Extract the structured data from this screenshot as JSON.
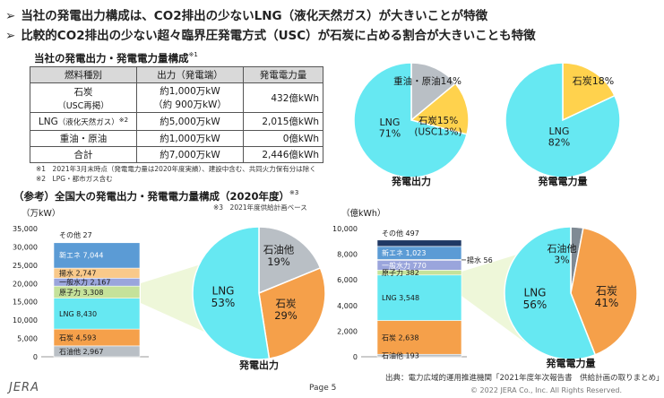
{
  "bullets": [
    "当社の発電出力構成は、CO2排出の少ないLNG（液化天然ガス）が大きいことが特徴",
    "比較的CO2排出の少ない超々臨界圧発電方式（USC）が石炭に占める割合が大きいことも特徴"
  ],
  "company_section": {
    "title": "当社の発電出力・発電電力量構成",
    "title_note": "※1",
    "table": {
      "headers": [
        "燃料種別",
        "出力（発電端）",
        "発電電力量"
      ],
      "rows": [
        {
          "fuel": "石炭",
          "fuel_sub": "（USC再掲）",
          "output": "約1,000万kW",
          "output_sub": "（約 900万kW）",
          "energy": "432億kWh"
        },
        {
          "fuel": "LNG",
          "fuel_sub_inline": "（液化天然ガス）",
          "fuel_note": "※2",
          "output": "約5,000万kW",
          "energy": "2,015億kWh"
        },
        {
          "fuel": "重油・原油",
          "output": "約1,000万kW",
          "energy": "0億kWh"
        },
        {
          "fuel": "合計",
          "output": "約7,000万kW",
          "energy": "2,446億kWh"
        }
      ]
    },
    "notes": [
      "※1　2021年3月末時点（発電電力量は2020年度実績）、建設中含む、共同火力保有分は除く",
      "※2　LPG・都市ガス含む"
    ]
  },
  "national_section": {
    "title": "（参考）全国大の発電出力・発電電力量構成（2020年度）",
    "title_note": "※3",
    "note": "※3　2021年度供給計画ベース",
    "source": "出典：電力広域的運用推進機関「2021年度年次報告書　供給計画の取りまとめ」"
  },
  "colors": {
    "lng": "#66e8f2",
    "coal": "#f5a04a",
    "coal_light": "#ffd24d",
    "oil": "#b9bfc5",
    "oil_dark": "#7f8a94",
    "renew": "#5b9bd5",
    "hydro_pumped": "#f9c98a",
    "hydro": "#9aa5dc",
    "nuclear": "#c5e29a",
    "other": "#1f3864",
    "light_blue_band": "#d6ecf8"
  },
  "chart_data": [
    {
      "type": "pie",
      "title": "発電出力",
      "slices": [
        {
          "label": "LNG",
          "value": 71,
          "display": "LNG\n71%"
        },
        {
          "label": "石炭",
          "value": 15,
          "display": "石炭15%\n(USC13%)"
        },
        {
          "label": "重油・原油",
          "value": 14,
          "display": "重油・原油14%"
        }
      ]
    },
    {
      "type": "pie",
      "title": "発電電力量",
      "slices": [
        {
          "label": "LNG",
          "value": 82,
          "display": "LNG\n82%"
        },
        {
          "label": "石炭",
          "value": 18,
          "display": "石炭18%"
        }
      ]
    },
    {
      "type": "bar",
      "stacked": true,
      "ylabel": "（万kW）",
      "ylim": [
        0,
        35000
      ],
      "yticks": [
        0,
        5000,
        10000,
        15000,
        20000,
        25000,
        30000,
        35000
      ],
      "segments": [
        {
          "name": "石油他",
          "value": 2967,
          "label": "石油他 2,967"
        },
        {
          "name": "石炭",
          "value": 4593,
          "label": "石炭 4,593"
        },
        {
          "name": "LNG",
          "value": 8430,
          "label": "LNG 8,430"
        },
        {
          "name": "原子力",
          "value": 3308,
          "label": "原子力 3,308"
        },
        {
          "name": "一般水力",
          "value": 2167,
          "label": "一般水力 2,167"
        },
        {
          "name": "揚水",
          "value": 2747,
          "label": "揚水 2,747"
        },
        {
          "name": "新エネ",
          "value": 7044,
          "label": "新エネ 7,044"
        },
        {
          "name": "その他",
          "value": 27,
          "label": "その他 27"
        }
      ]
    },
    {
      "type": "pie",
      "title": "発電出力",
      "slices": [
        {
          "label": "LNG",
          "value": 53,
          "display": "LNG\n53%"
        },
        {
          "label": "石炭",
          "value": 29,
          "display": "石炭\n29%"
        },
        {
          "label": "石油他",
          "value": 19,
          "display": "石油他\n19%"
        }
      ]
    },
    {
      "type": "bar",
      "stacked": true,
      "ylabel": "（億kWh）",
      "ylim": [
        0,
        10000
      ],
      "yticks": [
        0,
        2000,
        4000,
        6000,
        8000,
        10000
      ],
      "segments": [
        {
          "name": "石油他",
          "value": 193,
          "label": "石油他 193"
        },
        {
          "name": "石炭",
          "value": 2638,
          "label": "石炭 2,638"
        },
        {
          "name": "LNG",
          "value": 3548,
          "label": "LNG 3,548"
        },
        {
          "name": "原子力",
          "value": 382,
          "label": "原子力 382"
        },
        {
          "name": "一般水力",
          "value": 770,
          "label": "一般水力 770"
        },
        {
          "name": "揚水",
          "value": 56,
          "label": "揚水 56"
        },
        {
          "name": "新エネ",
          "value": 1023,
          "label": "新エネ 1,023"
        },
        {
          "name": "その他",
          "value": 497,
          "label": "その他 497"
        }
      ]
    },
    {
      "type": "pie",
      "title": "発電電力量",
      "slices": [
        {
          "label": "LNG",
          "value": 56,
          "display": "LNG\n56%"
        },
        {
          "label": "石炭",
          "value": 41,
          "display": "石炭\n41%"
        },
        {
          "label": "石油他",
          "value": 3,
          "display": "石油他\n3%"
        }
      ]
    }
  ],
  "footer": {
    "logo": "JERA",
    "page": "Page 5",
    "copyright": "© 2022 JERA Co., Inc. All Rights Reserved."
  }
}
